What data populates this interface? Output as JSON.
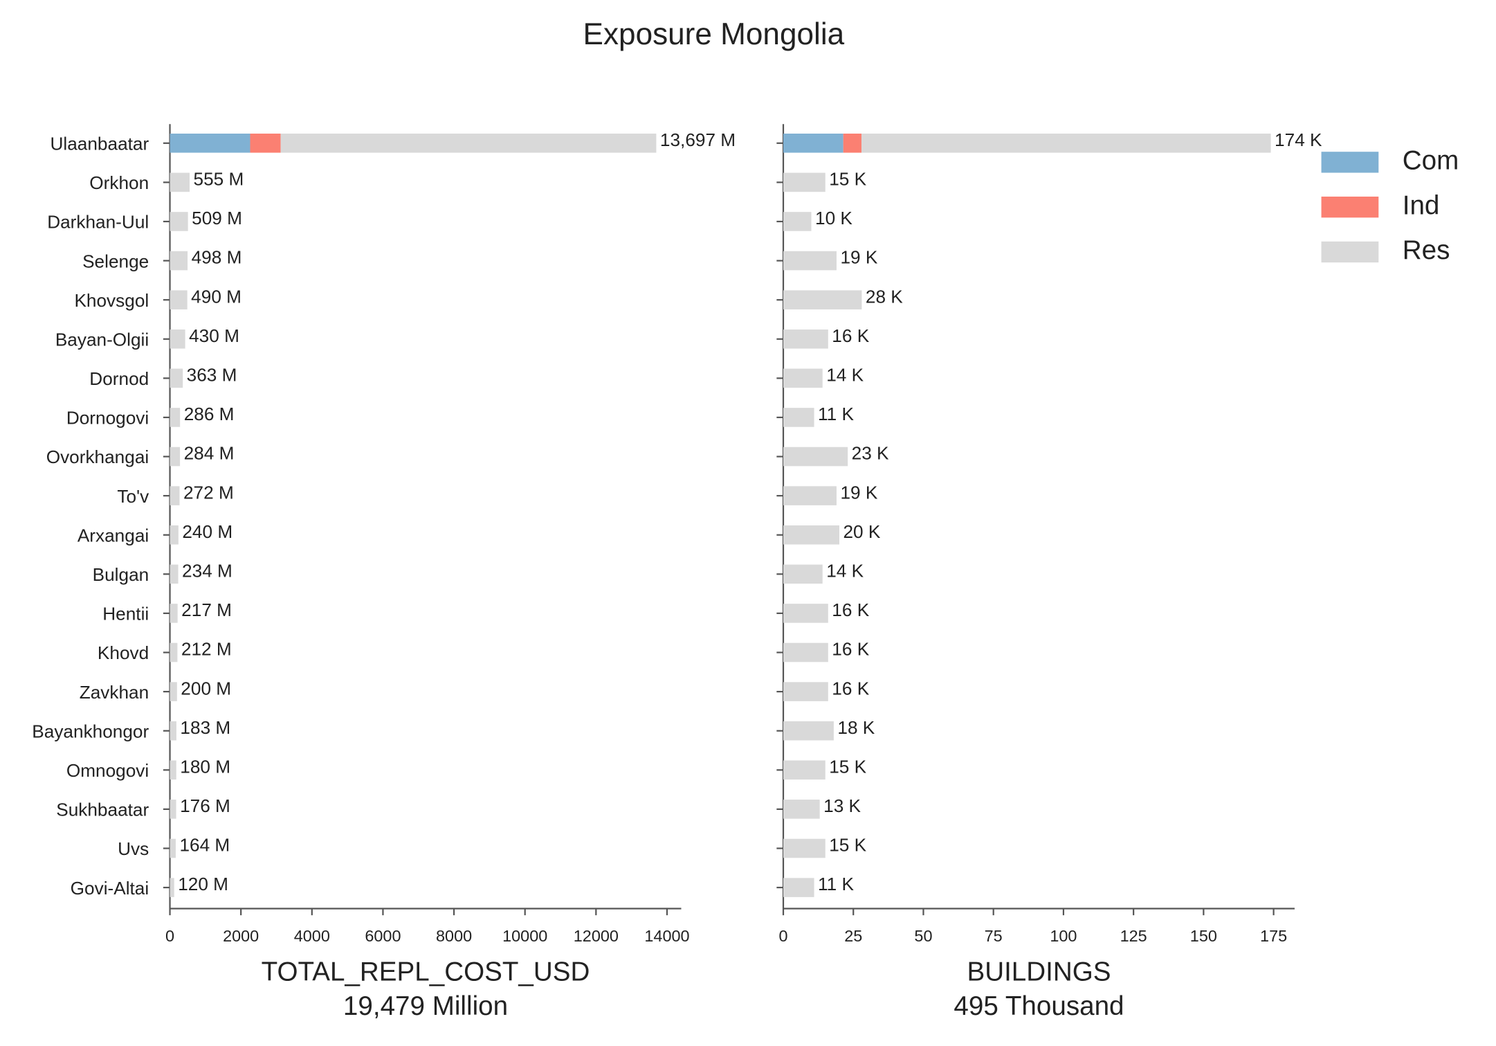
{
  "title": "Exposure Mongolia",
  "chart_data": [
    {
      "type": "bar",
      "orientation": "horizontal",
      "categories": [
        "Ulaanbaatar",
        "Orkhon",
        "Darkhan-Uul",
        "Selenge",
        "Khovsgol",
        "Bayan-Olgii",
        "Dornod",
        "Dornogovi",
        "Ovorkhangai",
        "To'v",
        "Arxangai",
        "Bulgan",
        "Hentii",
        "Khovd",
        "Zavkhan",
        "Bayankhongor",
        "Omnogovi",
        "Sukhbaatar",
        "Uvs",
        "Govi-Altai"
      ],
      "series": [
        {
          "name": "Com",
          "color": "#80b1d3",
          "values": [
            2260,
            0,
            0,
            0,
            0,
            0,
            0,
            0,
            0,
            0,
            0,
            0,
            0,
            0,
            0,
            0,
            0,
            0,
            0,
            0
          ]
        },
        {
          "name": "Ind",
          "color": "#fb8072",
          "values": [
            860,
            0,
            0,
            0,
            0,
            0,
            0,
            0,
            0,
            0,
            0,
            0,
            0,
            0,
            0,
            0,
            0,
            0,
            0,
            0
          ]
        },
        {
          "name": "Res",
          "color": "#d9d9d9",
          "values": [
            10577,
            555,
            509,
            498,
            490,
            430,
            363,
            286,
            284,
            272,
            240,
            234,
            217,
            212,
            200,
            183,
            180,
            176,
            164,
            120
          ]
        }
      ],
      "totals": [
        13697,
        555,
        509,
        498,
        490,
        430,
        363,
        286,
        284,
        272,
        240,
        234,
        217,
        212,
        200,
        183,
        180,
        176,
        164,
        120
      ],
      "total_labels": [
        "13,697 M",
        "555 M",
        "509 M",
        "498 M",
        "490 M",
        "430 M",
        "363 M",
        "286 M",
        "284 M",
        "272 M",
        "240 M",
        "234 M",
        "217 M",
        "212 M",
        "200 M",
        "183 M",
        "180 M",
        "176 M",
        "164 M",
        "120 M"
      ],
      "xlim": [
        0,
        14400
      ],
      "xticks": [
        0,
        2000,
        4000,
        6000,
        8000,
        10000,
        12000,
        14000
      ],
      "xlabel": "TOTAL_REPL_COST_USD",
      "xlabel_sub": "19,479 Million",
      "legend": false
    },
    {
      "type": "bar",
      "orientation": "horizontal",
      "series": [
        {
          "name": "Com",
          "color": "#80b1d3",
          "values": [
            21.4,
            0,
            0,
            0,
            0,
            0,
            0,
            0,
            0,
            0,
            0,
            0,
            0,
            0,
            0,
            0,
            0,
            0,
            0,
            0
          ]
        },
        {
          "name": "Ind",
          "color": "#fb8072",
          "values": [
            6.5,
            0,
            0,
            0,
            0,
            0,
            0,
            0,
            0,
            0,
            0,
            0,
            0,
            0,
            0,
            0,
            0,
            0,
            0,
            0
          ]
        },
        {
          "name": "Res",
          "color": "#d9d9d9",
          "values": [
            146.1,
            15,
            10,
            19,
            28,
            16,
            14,
            11,
            23,
            19,
            20,
            14,
            16,
            16,
            16,
            18,
            15,
            13,
            15,
            11
          ]
        }
      ],
      "totals": [
        174,
        15,
        10,
        19,
        28,
        16,
        14,
        11,
        23,
        19,
        20,
        14,
        16,
        16,
        16,
        18,
        15,
        13,
        15,
        11
      ],
      "total_labels": [
        "174 K",
        "15 K",
        "10 K",
        "19 K",
        "28 K",
        "16 K",
        "14 K",
        "11 K",
        "23 K",
        "19 K",
        "20 K",
        "14 K",
        "16 K",
        "16 K",
        "16 K",
        "18 K",
        "15 K",
        "13 K",
        "15 K",
        "11 K"
      ],
      "xlim": [
        0,
        182.5
      ],
      "xticks": [
        0,
        25,
        50,
        75,
        100,
        125,
        150,
        175
      ],
      "xlabel": "BUILDINGS",
      "xlabel_sub": "495 Thousand",
      "legend": "upper right"
    }
  ]
}
